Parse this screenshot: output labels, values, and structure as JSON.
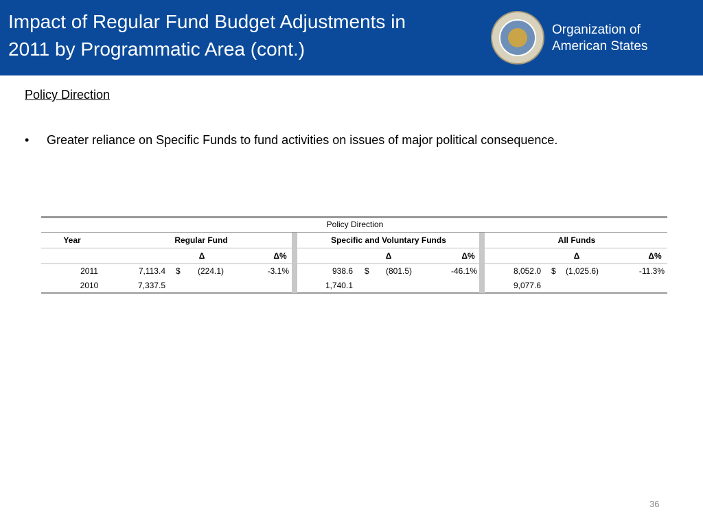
{
  "header": {
    "title_lines": [
      "Impact of Regular Fund Budget Adjustments in",
      "2011 by Programmatic Area (cont.)"
    ],
    "organization_lines": [
      "Organization of",
      "American States"
    ]
  },
  "section_heading": "Policy Direction",
  "bullets": [
    "Greater reliance on Specific Funds to fund activities on issues of major political consequence."
  ],
  "table": {
    "caption": "Policy Direction",
    "year_header": "Year",
    "groups": [
      {
        "name": "Regular Fund",
        "subheaders": [
          "Δ",
          "Δ%"
        ]
      },
      {
        "name": "Specific and Voluntary Funds",
        "subheaders": [
          "Δ",
          "Δ%"
        ]
      },
      {
        "name": "All Funds",
        "subheaders": [
          "Δ",
          "Δ%"
        ]
      }
    ],
    "rows": [
      {
        "year": "2011",
        "cells": [
          {
            "value": "7,113.4",
            "currency": "$",
            "change": "(224.1)",
            "change_pct": "-3.1%"
          },
          {
            "value": "938.6",
            "currency": "$",
            "change": "(801.5)",
            "change_pct": "-46.1%"
          },
          {
            "value": "8,052.0",
            "currency": "$",
            "change": "(1,025.6)",
            "change_pct": "-11.3%"
          }
        ]
      },
      {
        "year": "2010",
        "cells": [
          {
            "value": "7,337.5"
          },
          {
            "value": "1,740.1"
          },
          {
            "value": "9,077.6"
          }
        ]
      }
    ]
  },
  "page_number": "36"
}
